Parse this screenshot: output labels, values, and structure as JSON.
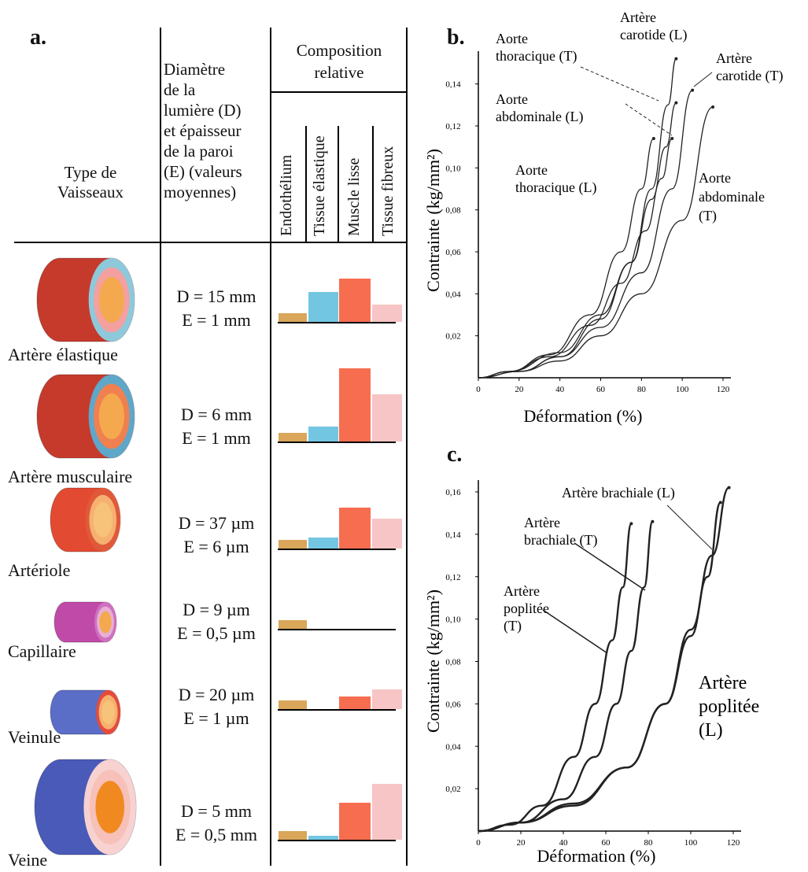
{
  "panel_a": {
    "label": "a.",
    "header_type": [
      "Type de",
      "Vaisseaux"
    ],
    "header_dim": [
      "Diamètre",
      "de la",
      "lumière (D)",
      "et épaisseur",
      "de la paroi",
      "(E) (valeurs",
      "moyennes)"
    ],
    "header_comp": [
      "Composition",
      "relative"
    ],
    "columns": [
      "Endothélium",
      "Tissue élastique",
      "Muscle lisse",
      "Tissue fibreux"
    ],
    "colors": {
      "endothelium": "#d9a65a",
      "elastique": "#72c6e2",
      "muscle": "#f76d50",
      "fibreux": "#f7c5c5"
    },
    "vessels": [
      {
        "name": "Artère élastique",
        "d": "D = 15 mm",
        "e": "E = 1 mm",
        "comp": [
          0.2,
          0.7,
          1.0,
          0.4
        ],
        "icon": "elastic-artery-icon"
      },
      {
        "name": "Artère musculaire",
        "d": "D = 6 mm",
        "e": "E = 1 mm",
        "comp": [
          0.2,
          0.35,
          1.7,
          1.1
        ],
        "icon": "muscular-artery-icon"
      },
      {
        "name": "Artériole",
        "d": "D = 37 µm",
        "e": "E = 6 µm",
        "comp": [
          0.2,
          0.25,
          0.95,
          0.7
        ],
        "icon": "arteriole-icon"
      },
      {
        "name": "Capillaire",
        "d": "D = 9 µm",
        "e": "E = 0,5 µm",
        "comp": [
          0.2,
          0,
          0,
          0
        ],
        "icon": "capillary-icon"
      },
      {
        "name": "Veinule",
        "d": "D = 20 µm",
        "e": "E = 1 µm",
        "comp": [
          0.2,
          0,
          0.3,
          0.45
        ],
        "icon": "venule-icon"
      },
      {
        "name": "Veine",
        "d": "D = 5 mm",
        "e": "E = 0,5 mm",
        "comp": [
          0.2,
          0.1,
          0.85,
          1.3
        ],
        "icon": "vein-icon"
      }
    ]
  },
  "chart_data": [
    {
      "type": "line",
      "panel": "b.",
      "xlabel": "Déformation (%)",
      "ylabel": "Contrainte (kg/mm²)",
      "xlim": [
        0,
        120
      ],
      "ylim": [
        0,
        0.15
      ],
      "xticks": [
        "0",
        "20",
        "40",
        "60",
        "80",
        "100",
        "120"
      ],
      "yticks": [
        "0,02",
        "0,04",
        "0,06",
        "0,08",
        "0,10",
        "0,12",
        "0,14"
      ],
      "series": [
        {
          "name": "Aorte thoracique (T)",
          "x": [
            0,
            15,
            40,
            60,
            75,
            85,
            92,
            97
          ],
          "y": [
            0,
            0.003,
            0.012,
            0.03,
            0.055,
            0.085,
            0.11,
            0.131
          ]
        },
        {
          "name": "Artère carotide (L)",
          "x": [
            0,
            20,
            40,
            60,
            75,
            85,
            93,
            97
          ],
          "y": [
            0,
            0.003,
            0.01,
            0.028,
            0.055,
            0.09,
            0.13,
            0.152
          ]
        },
        {
          "name": "Artère carotide (T)",
          "x": [
            0,
            20,
            40,
            60,
            80,
            95,
            105
          ],
          "y": [
            0,
            0.003,
            0.01,
            0.024,
            0.05,
            0.09,
            0.137
          ]
        },
        {
          "name": "Aorte abdominale (L)",
          "x": [
            0,
            15,
            35,
            55,
            70,
            82,
            90,
            95
          ],
          "y": [
            0,
            0.003,
            0.01,
            0.025,
            0.045,
            0.07,
            0.095,
            0.114
          ]
        },
        {
          "name": "Aorte thoracique (L)",
          "x": [
            0,
            15,
            35,
            55,
            70,
            80,
            86
          ],
          "y": [
            0,
            0.003,
            0.011,
            0.03,
            0.06,
            0.09,
            0.114
          ]
        },
        {
          "name": "Aorte abdominale (T)",
          "x": [
            0,
            20,
            40,
            60,
            80,
            100,
            115
          ],
          "y": [
            0,
            0.003,
            0.008,
            0.02,
            0.04,
            0.075,
            0.129
          ]
        }
      ],
      "labels": [
        {
          "text": [
            "Aorte",
            "thoracique (T)"
          ]
        },
        {
          "text": [
            "Artère",
            "carotide (L)"
          ]
        },
        {
          "text": [
            "Artère",
            "carotide (T)"
          ]
        },
        {
          "text": [
            "Aorte",
            "abdominale (L)"
          ]
        },
        {
          "text": [
            "Aorte",
            "thoracique (L)"
          ]
        },
        {
          "text": [
            "Aorte",
            "abdominale",
            "(T)"
          ]
        }
      ]
    },
    {
      "type": "line",
      "panel": "c.",
      "xlabel": "Déformation (%)",
      "ylabel": "Contrainte (kg/mm²)",
      "xlim": [
        0,
        120
      ],
      "ylim": [
        0,
        0.16
      ],
      "xticks": [
        "0",
        "20",
        "40",
        "60",
        "80",
        "100",
        "120"
      ],
      "yticks": [
        "0,02",
        "0,04",
        "0,06",
        "0,08",
        "0,10",
        "0,12",
        "0,14",
        "0,16"
      ],
      "series": [
        {
          "name": "Artère brachiale (T)",
          "x": [
            0,
            15,
            30,
            45,
            55,
            63,
            68,
            72
          ],
          "y": [
            0,
            0.003,
            0.012,
            0.035,
            0.06,
            0.09,
            0.115,
            0.145
          ]
        },
        {
          "name": "Artère poplitée (T)",
          "x": [
            0,
            20,
            40,
            55,
            65,
            72,
            78,
            82
          ],
          "y": [
            0,
            0.004,
            0.015,
            0.035,
            0.06,
            0.085,
            0.115,
            0.146
          ]
        },
        {
          "name": "Artère brachiale (L)",
          "x": [
            0,
            20,
            45,
            70,
            88,
            100,
            110,
            118
          ],
          "y": [
            0,
            0.004,
            0.012,
            0.03,
            0.06,
            0.095,
            0.13,
            0.162
          ]
        },
        {
          "name": "Artère poplitée (L)",
          "x": [
            0,
            20,
            45,
            70,
            88,
            100,
            108,
            114
          ],
          "y": [
            0,
            0.004,
            0.013,
            0.03,
            0.06,
            0.092,
            0.12,
            0.155
          ]
        }
      ],
      "labels": [
        {
          "text": [
            "Artère brachiale (L)"
          ]
        },
        {
          "text": [
            "Artère",
            "brachiale (T)"
          ]
        },
        {
          "text": [
            "Artère",
            "poplitée",
            "(T)"
          ]
        },
        {
          "text": [
            "Artère",
            "poplitée",
            "(L)"
          ]
        }
      ]
    }
  ]
}
